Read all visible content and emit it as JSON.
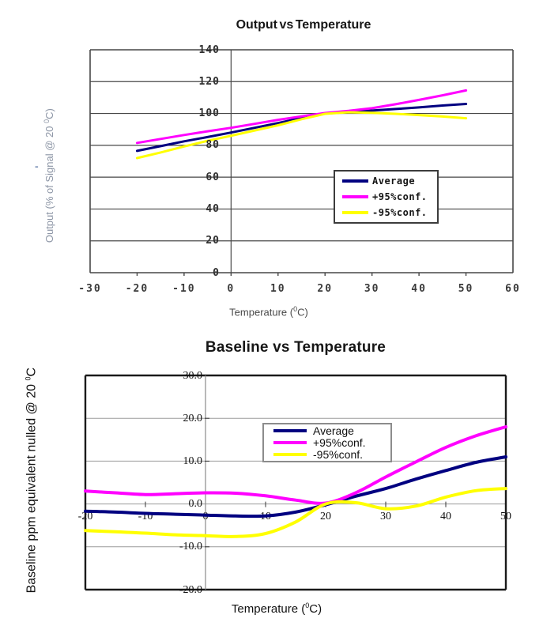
{
  "page": {
    "background": "#ffffff",
    "stray_mark": "-"
  },
  "chart_data": [
    {
      "type": "line",
      "title": "Output vs Temperature",
      "xlabel": "Temperature (0C)",
      "xlabel_parts": {
        "pre": "Temperature (",
        "sup": "0",
        "post": "C)"
      },
      "ylabel": "Output (% of Signal @ 20 0C)",
      "ylabel_parts": {
        "pre": "Output (% of Signal @ 20 ",
        "sup": "0",
        "post": "C)"
      },
      "xlim": [
        -30,
        60
      ],
      "ylim": [
        0,
        140
      ],
      "x_ticks": [
        -30,
        -20,
        -10,
        0,
        10,
        20,
        30,
        40,
        50,
        60
      ],
      "y_ticks": [
        140,
        120,
        100,
        80,
        60,
        40,
        20,
        0
      ],
      "grid": "on",
      "legend_position": "inside-middle-right",
      "x": [
        -20,
        -15,
        -10,
        -5,
        0,
        5,
        10,
        15,
        20,
        25,
        30,
        35,
        40,
        45,
        50
      ],
      "series": [
        {
          "name": "Average",
          "color": "#000080",
          "values": [
            76.5,
            79.5,
            82.5,
            85.2,
            88,
            91,
            94,
            97.2,
            100,
            100.9,
            101.8,
            102.8,
            103.8,
            105,
            106
          ]
        },
        {
          "name": "+95%conf.",
          "color": "#ff00ff",
          "values": [
            81.5,
            84,
            86.5,
            88.8,
            91,
            93.5,
            96,
            98.2,
            100.3,
            101.6,
            103.3,
            105.8,
            108.5,
            111.4,
            114.5
          ]
        },
        {
          "name": "-95%conf.",
          "color": "#ffff00",
          "values": [
            72,
            75.5,
            79.3,
            82.8,
            86,
            89.3,
            92.6,
            96.4,
            99.8,
            100.8,
            100.4,
            99.8,
            99,
            98.1,
            97
          ]
        }
      ]
    },
    {
      "type": "line",
      "title": "Baseline vs Temperature",
      "xlabel": "Temperature (0C)",
      "xlabel_parts": {
        "pre": "Temperature (",
        "sup": "0",
        "post": "C)"
      },
      "ylabel": "Baseline ppm equivalent nulled @ 20 0C",
      "ylabel_parts": {
        "pre": "Baseline ppm equivalent nulled @ 20 ",
        "sup": "0",
        "post": "C"
      },
      "xlim": [
        -20,
        50
      ],
      "ylim": [
        -20,
        30
      ],
      "x_ticks": [
        -20,
        -10,
        0,
        10,
        20,
        30,
        40,
        50
      ],
      "y_ticks": [
        30.0,
        20.0,
        10.0,
        0.0,
        -10.0,
        -20.0
      ],
      "y_tick_labels": [
        "30.0",
        "20.0",
        "10.0",
        "0.0",
        "-10.0",
        "-20.0"
      ],
      "grid": "on",
      "legend_position": "inside-top-center",
      "x": [
        -20,
        -15,
        -10,
        -5,
        0,
        5,
        10,
        15,
        20,
        25,
        30,
        35,
        40,
        45,
        50
      ],
      "series": [
        {
          "name": "Average",
          "color": "#000080",
          "values": [
            -1.7,
            -1.9,
            -2.2,
            -2.4,
            -2.6,
            -2.8,
            -2.8,
            -1.9,
            -0.2,
            1.8,
            3.6,
            5.8,
            7.8,
            9.7,
            11.0
          ]
        },
        {
          "name": "+95%conf.",
          "color": "#ff00ff",
          "values": [
            3.0,
            2.6,
            2.2,
            2.4,
            2.6,
            2.5,
            1.9,
            0.9,
            0.2,
            2.6,
            6.3,
            9.8,
            13.2,
            15.9,
            18.0
          ]
        },
        {
          "name": "-95%conf.",
          "color": "#ffff00",
          "values": [
            -6.2,
            -6.5,
            -6.8,
            -7.2,
            -7.4,
            -7.6,
            -6.9,
            -4.2,
            0.0,
            0.3,
            -1.1,
            -0.5,
            1.6,
            3.1,
            3.6
          ]
        }
      ]
    }
  ]
}
